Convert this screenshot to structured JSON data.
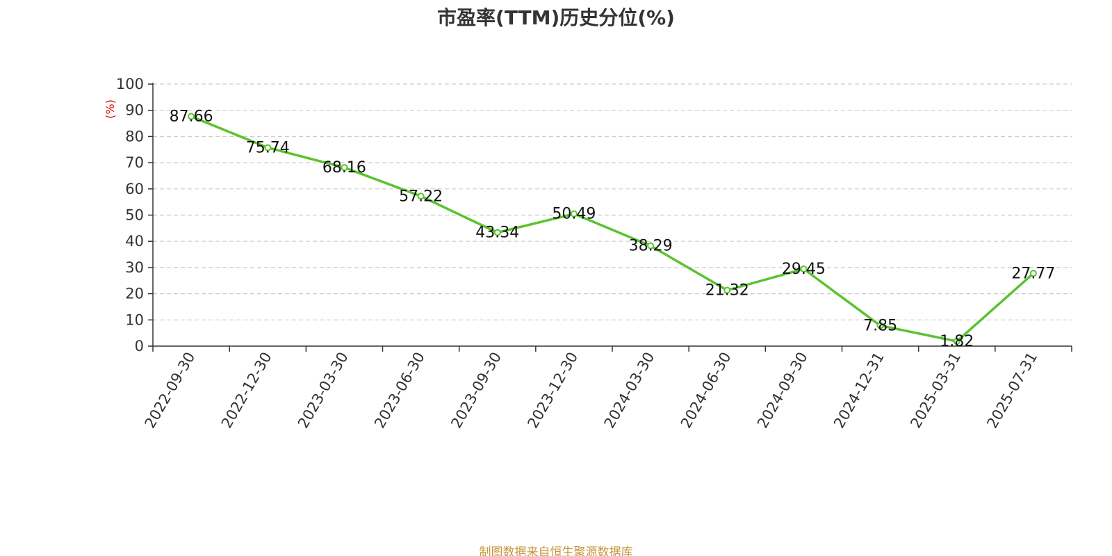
{
  "chart_data": {
    "type": "line",
    "title": "市盈率(TTM)历史分位(%)",
    "ylabel": "(%)",
    "xlabel": "",
    "categories": [
      "2022-09-30",
      "2022-12-30",
      "2023-03-30",
      "2023-06-30",
      "2023-09-30",
      "2023-12-30",
      "2024-03-30",
      "2024-06-30",
      "2024-09-30",
      "2024-12-31",
      "2025-03-31",
      "2025-07-31"
    ],
    "values": [
      87.66,
      75.74,
      68.16,
      57.22,
      43.34,
      50.49,
      38.29,
      21.32,
      29.45,
      7.85,
      1.82,
      27.77
    ],
    "data_labels": [
      "87.66",
      "75.74",
      "68.16",
      "57.22",
      "43.34",
      "50.49",
      "38.29",
      "21.32",
      "29.45",
      "7.85",
      "1.82",
      "27.77"
    ],
    "ylim": [
      0,
      100
    ],
    "yticks": [
      "0",
      "10",
      "20",
      "30",
      "40",
      "50",
      "60",
      "70",
      "80",
      "90",
      "100"
    ],
    "grid": true,
    "line_color": "#5ac32e",
    "ylabel_color": "#e00000"
  },
  "source": "制图数据来自恒生聚源数据库"
}
